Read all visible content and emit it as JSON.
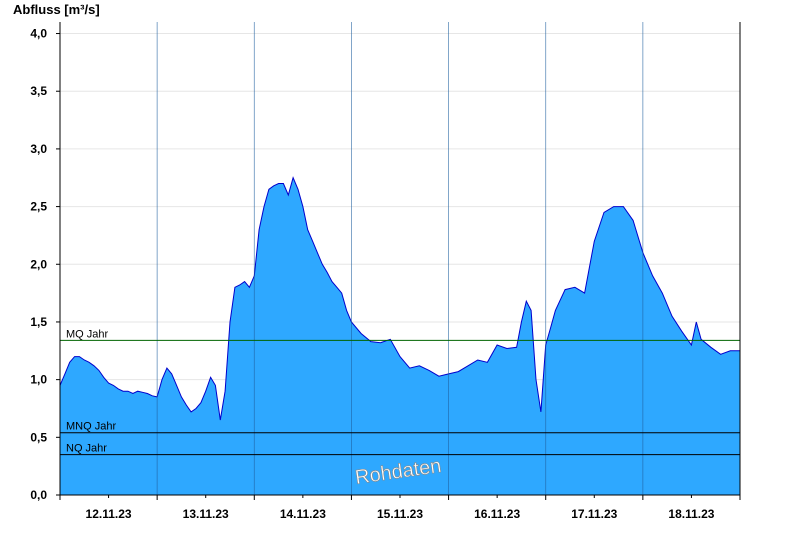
{
  "chart_data": {
    "type": "area",
    "ylabel": "Abfluss [m³/s]",
    "ylim": [
      0,
      4.1
    ],
    "yticks": [
      "0,0",
      "0,5",
      "1,0",
      "1,5",
      "2,0",
      "2,5",
      "3,0",
      "3,5",
      "4,0"
    ],
    "ytick_values": [
      0,
      0.5,
      1.0,
      1.5,
      2.0,
      2.5,
      3.0,
      3.5,
      4.0
    ],
    "xlim": [
      0,
      7
    ],
    "x_tick_labels": [
      "12.11.23",
      "13.11.23",
      "14.11.23",
      "15.11.23",
      "16.11.23",
      "17.11.23",
      "18.11.23"
    ],
    "day_boundaries": [
      1,
      2,
      3,
      4,
      5,
      6
    ],
    "grid": true,
    "reference_lines": [
      {
        "name": "MQ Jahr",
        "value": 1.34,
        "color": "#006400"
      },
      {
        "name": "MNQ Jahr",
        "value": 0.54,
        "color": "#000000"
      },
      {
        "name": "NQ Jahr",
        "value": 0.35,
        "color": "#000000"
      }
    ],
    "watermark": "Rohdaten",
    "colors": {
      "fill": "#2ea8ff",
      "line": "#0000cc"
    },
    "series": [
      {
        "x": [
          0,
          0.05,
          0.1,
          0.15,
          0.2,
          0.25,
          0.3,
          0.35,
          0.4,
          0.45,
          0.5,
          0.55,
          0.6,
          0.65,
          0.7,
          0.75,
          0.8,
          0.85,
          0.9,
          0.95,
          1.0,
          1.05,
          1.1,
          1.15,
          1.2,
          1.25,
          1.3,
          1.35,
          1.4,
          1.45,
          1.5,
          1.55,
          1.6,
          1.65,
          1.7,
          1.75,
          1.8,
          1.85,
          1.9,
          1.95,
          2.0,
          2.05,
          2.1,
          2.15,
          2.2,
          2.25,
          2.3,
          2.35,
          2.4,
          2.45,
          2.5,
          2.55,
          2.6,
          2.65,
          2.7,
          2.75,
          2.8,
          2.85,
          2.9,
          2.95,
          3.0,
          3.1,
          3.2,
          3.3,
          3.4,
          3.5,
          3.6,
          3.7,
          3.8,
          3.9,
          4.0,
          4.1,
          4.2,
          4.3,
          4.4,
          4.5,
          4.6,
          4.7,
          4.75,
          4.8,
          4.85,
          4.9,
          4.95,
          5.0,
          5.05,
          5.1,
          5.2,
          5.3,
          5.4,
          5.5,
          5.6,
          5.7,
          5.8,
          5.9,
          6.0,
          6.1,
          6.2,
          6.3,
          6.4,
          6.5,
          6.55,
          6.6,
          6.7,
          6.8,
          6.9,
          7.0
        ],
        "y": [
          0.95,
          1.05,
          1.15,
          1.2,
          1.2,
          1.17,
          1.15,
          1.12,
          1.08,
          1.02,
          0.97,
          0.95,
          0.92,
          0.9,
          0.9,
          0.88,
          0.9,
          0.89,
          0.88,
          0.86,
          0.85,
          1.0,
          1.1,
          1.05,
          0.95,
          0.85,
          0.78,
          0.72,
          0.75,
          0.8,
          0.9,
          1.02,
          0.95,
          0.65,
          0.9,
          1.5,
          1.8,
          1.82,
          1.85,
          1.8,
          1.9,
          2.3,
          2.5,
          2.65,
          2.68,
          2.7,
          2.7,
          2.6,
          2.75,
          2.65,
          2.5,
          2.3,
          2.2,
          2.1,
          2.0,
          1.93,
          1.85,
          1.8,
          1.75,
          1.6,
          1.5,
          1.4,
          1.33,
          1.32,
          1.35,
          1.2,
          1.1,
          1.12,
          1.08,
          1.03,
          1.05,
          1.07,
          1.12,
          1.17,
          1.15,
          1.3,
          1.27,
          1.28,
          1.5,
          1.68,
          1.6,
          1.0,
          0.72,
          1.3,
          1.45,
          1.6,
          1.78,
          1.8,
          1.75,
          2.2,
          2.45,
          2.5,
          2.5,
          2.38,
          2.1,
          1.9,
          1.75,
          1.55,
          1.42,
          1.3,
          1.5,
          1.35,
          1.28,
          1.22,
          1.25,
          1.25
        ]
      }
    ]
  }
}
